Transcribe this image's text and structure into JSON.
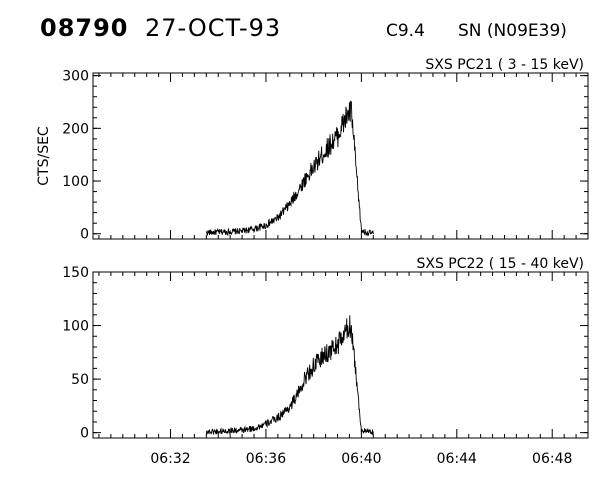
{
  "header": {
    "event_id": "08790",
    "date": "27-OCT-93",
    "flare_class": "C9.4",
    "location": "SN (N09E39)"
  },
  "chart_data": [
    {
      "type": "line",
      "title": "SXS PC21  (  3 - 15 keV)",
      "xlabel": "",
      "ylabel": "CTS/SEC",
      "xlim": [
        "06:28:45",
        "06:49:30"
      ],
      "ylim": [
        -10,
        305
      ],
      "y_ticks": [
        0,
        100,
        200,
        300
      ],
      "x_ticks": [
        "06:32",
        "06:36",
        "06:40",
        "06:44",
        "06:48"
      ],
      "x_tick_labels_shown": false,
      "grid": false,
      "series": [
        {
          "x": [
            "06:33:30",
            "06:34:00",
            "06:34:30",
            "06:35:00",
            "06:35:30",
            "06:36:00",
            "06:36:30",
            "06:37:00",
            "06:37:20",
            "06:37:40",
            "06:38:00",
            "06:38:20",
            "06:38:40",
            "06:39:00",
            "06:39:15",
            "06:39:25",
            "06:39:35",
            "06:39:45",
            "06:40:00",
            "06:40:15",
            "06:40:30"
          ],
          "values": [
            2,
            3,
            4,
            5,
            9,
            16,
            30,
            56,
            80,
            105,
            125,
            148,
            168,
            185,
            210,
            225,
            232,
            140,
            6,
            2,
            1
          ]
        }
      ]
    },
    {
      "type": "line",
      "title": "SXS PC22  ( 15 - 40 keV)",
      "xlabel": "",
      "ylabel": "",
      "xlim": [
        "06:28:45",
        "06:49:30"
      ],
      "ylim": [
        -5,
        150
      ],
      "y_ticks": [
        0,
        50,
        100,
        150
      ],
      "x_ticks": [
        "06:32",
        "06:36",
        "06:40",
        "06:44",
        "06:48"
      ],
      "x_tick_labels_shown": true,
      "grid": false,
      "series": [
        {
          "x": [
            "06:33:30",
            "06:34:00",
            "06:34:30",
            "06:35:00",
            "06:35:30",
            "06:36:00",
            "06:36:30",
            "06:37:00",
            "06:37:20",
            "06:37:40",
            "06:38:00",
            "06:38:20",
            "06:38:40",
            "06:39:00",
            "06:39:15",
            "06:39:25",
            "06:39:35",
            "06:39:45",
            "06:40:00",
            "06:40:15",
            "06:40:30"
          ],
          "values": [
            1,
            1,
            2,
            2,
            4,
            8,
            14,
            24,
            36,
            52,
            62,
            70,
            76,
            82,
            90,
            97,
            100,
            60,
            2,
            1,
            0
          ]
        }
      ]
    }
  ]
}
